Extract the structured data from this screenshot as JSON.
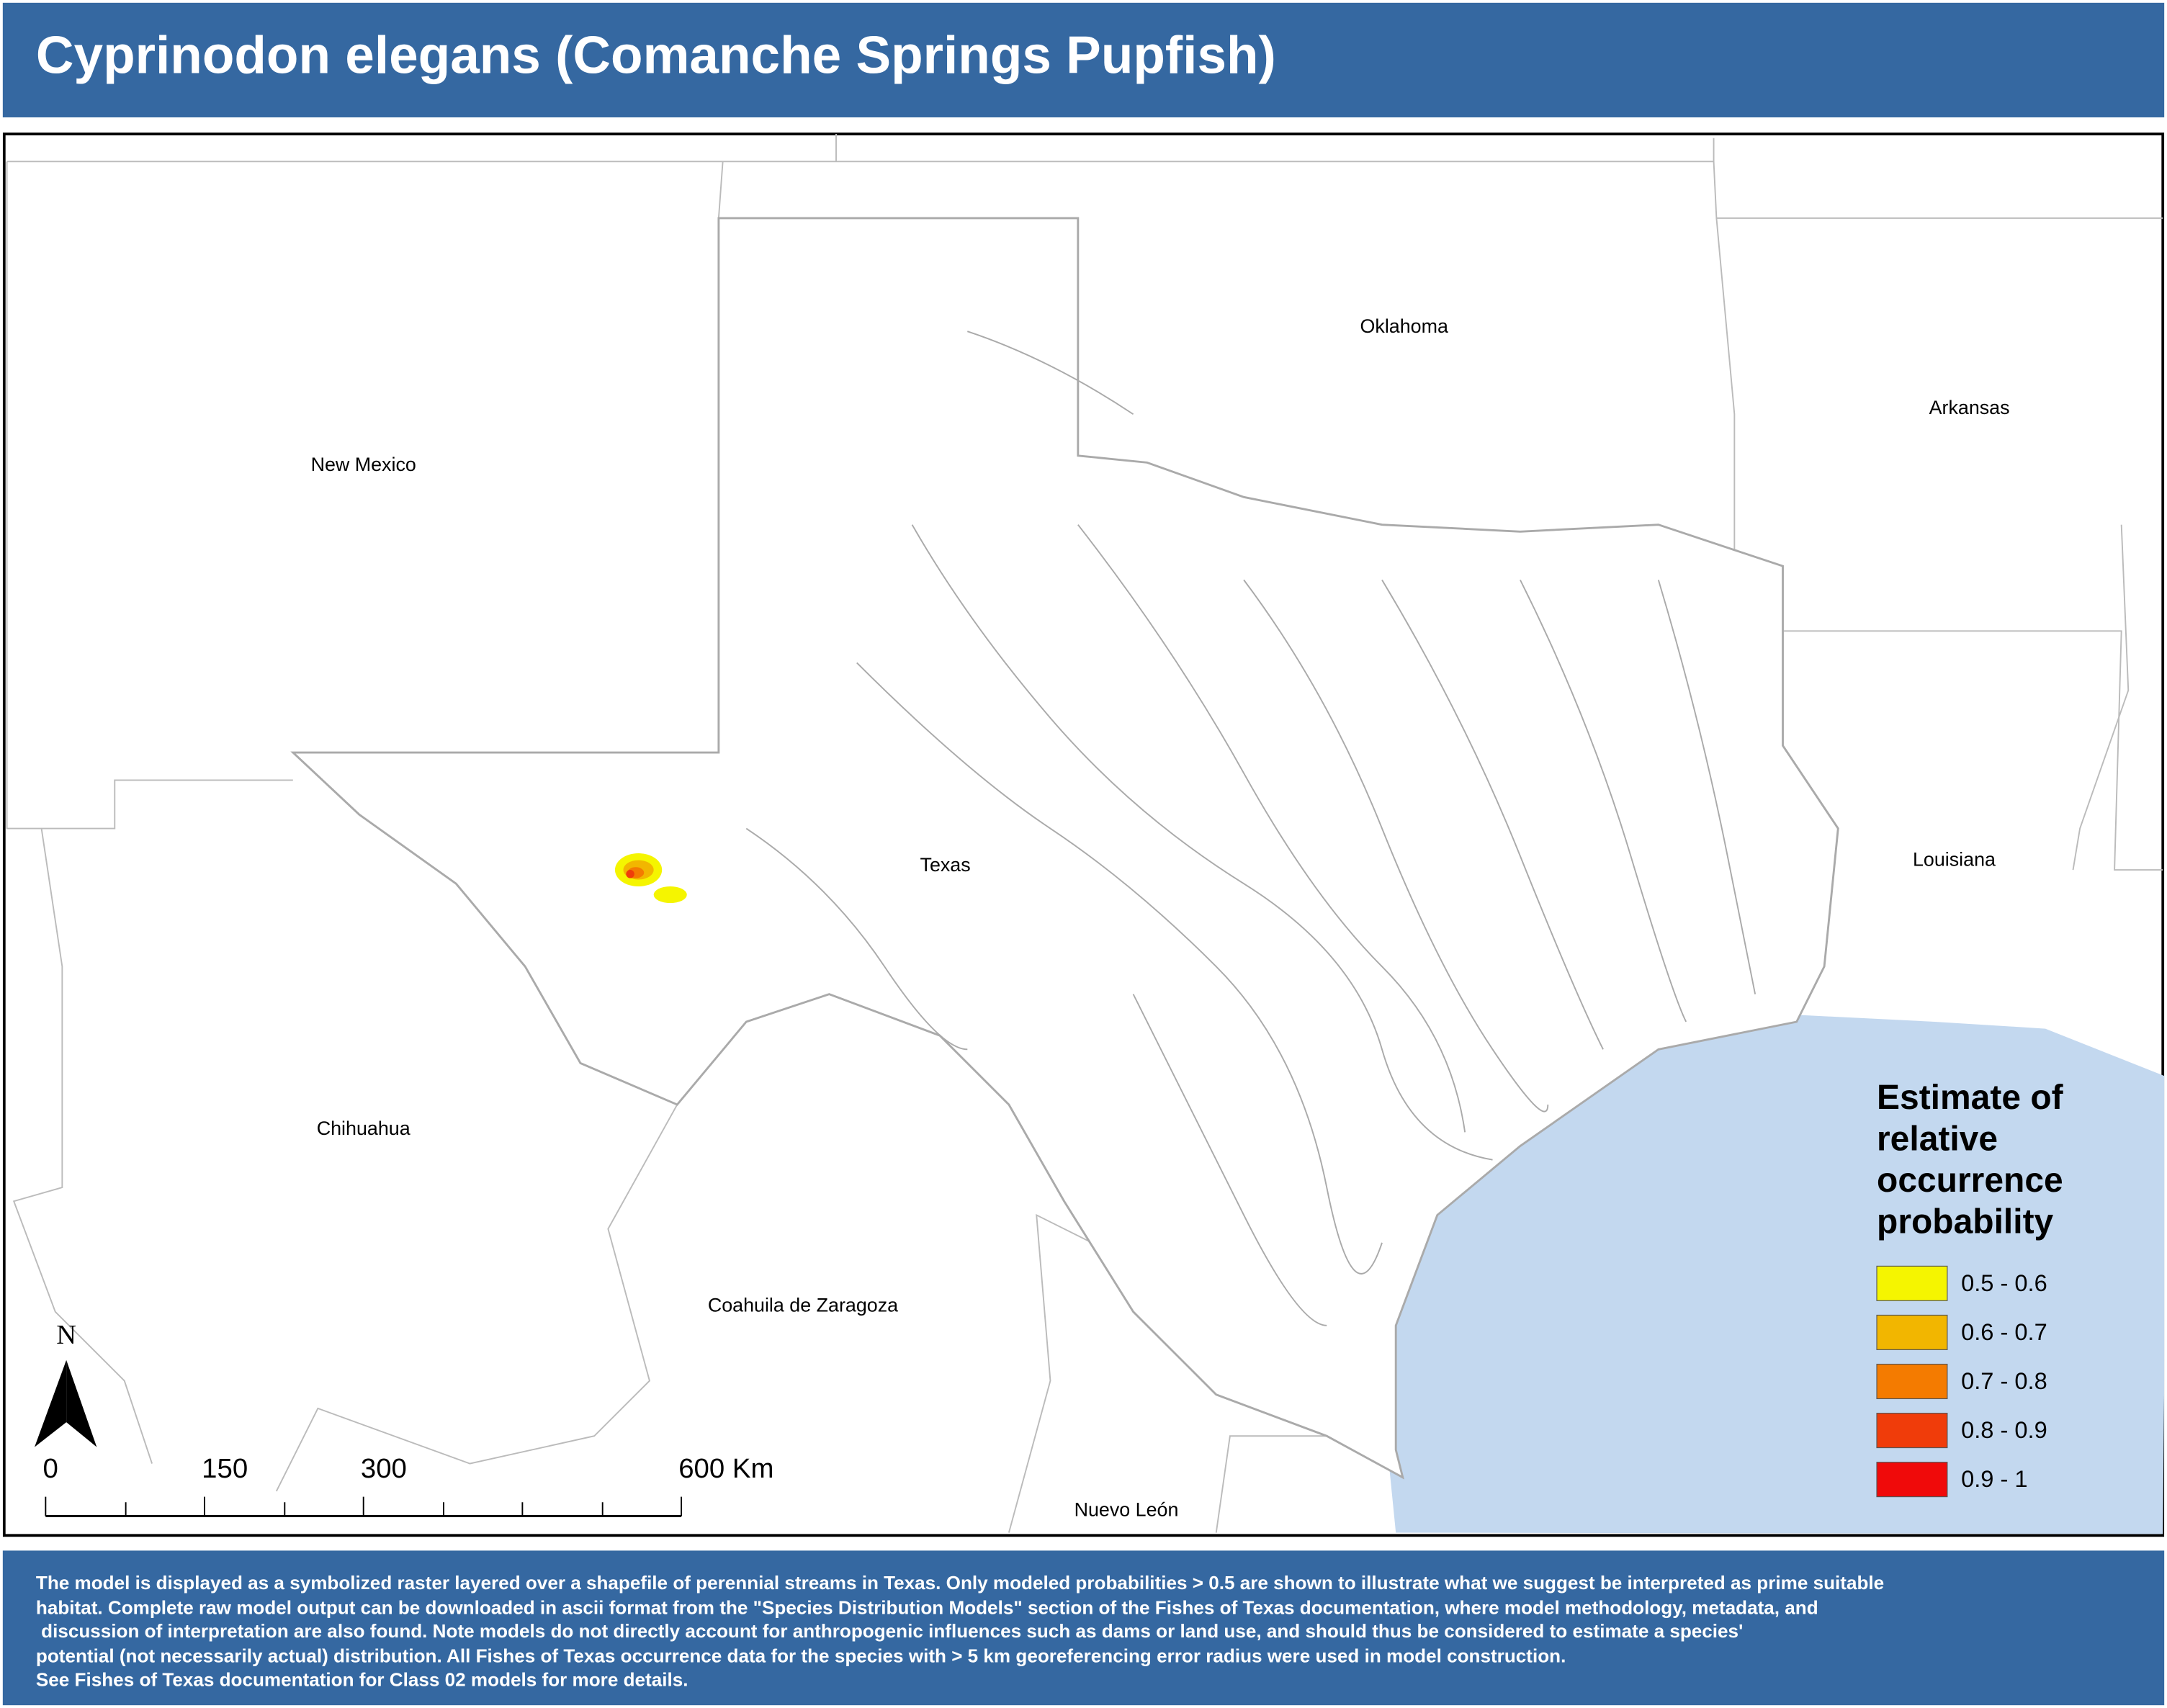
{
  "header": {
    "title": "Cyprinodon elegans (Comanche Springs Pupfish)"
  },
  "map": {
    "labels": [
      "New Mexico",
      "Oklahoma",
      "Arkansas",
      "Texas",
      "Louisiana",
      "Chihuahua",
      "Coahuila de Zaragoza",
      "Nuevo León"
    ]
  },
  "legend": {
    "title": "Estimate of relative occurrence probability",
    "items": [
      {
        "label": "0.5 - 0.6",
        "color": "#f5f500"
      },
      {
        "label": "0.6 - 0.7",
        "color": "#f2b600"
      },
      {
        "label": "0.7 - 0.8",
        "color": "#f47b00"
      },
      {
        "label": "0.8 - 0.9",
        "color": "#f03c0a"
      },
      {
        "label": "0.9 - 1",
        "color": "#f00a0a"
      }
    ]
  },
  "north_arrow": "N",
  "scale_bar": {
    "ticks": [
      {
        "value": 0,
        "label": "0"
      },
      150,
      300,
      {
        "value": 600,
        "label": "600 Km"
      }
    ],
    "range": [
      0,
      600
    ]
  },
  "footer": {
    "lines": [
      "The model is displayed as a symbolized raster layered over a shapefile of perennial streams in Texas. Only modeled probabilities > 0.5 are shown to illustrate what we suggest be interpreted as prime suitable",
      "habitat. Complete raw model output can be downloaded in ascii format from the \"Species Distribution Models\" section of the Fishes of Texas documentation, where model methodology, metadata, and",
      " discussion of interpretation are also found. Note models do not directly account for anthropogenic influences such as dams or land use, and should thus be considered to estimate a species'",
      "potential (not necessarily actual) distribution. All Fishes of Texas occurrence data for the species with > 5 km georeferencing error radius were used in model construction.",
      "See Fishes of Texas documentation for Class 02 models for more details."
    ]
  }
}
